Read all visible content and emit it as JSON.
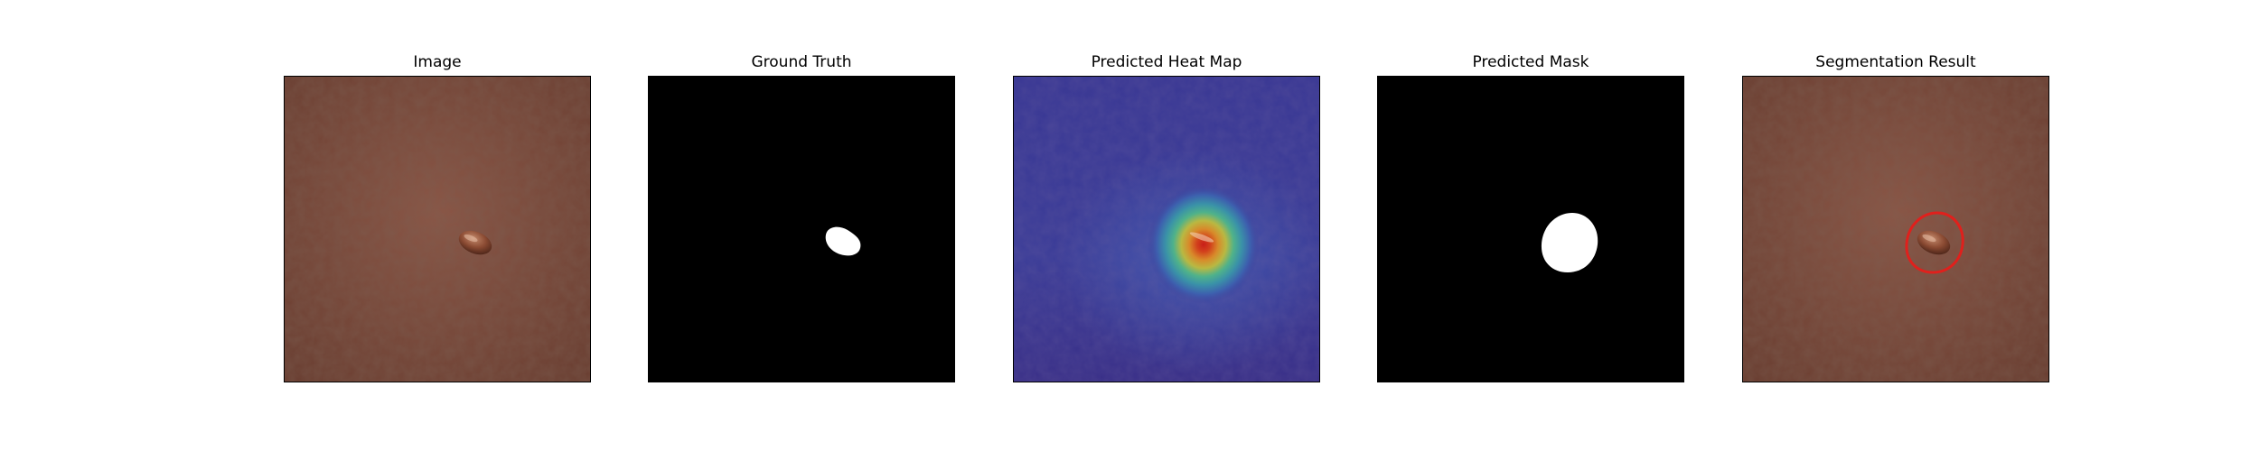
{
  "panels": [
    {
      "title": "Image"
    },
    {
      "title": "Ground Truth"
    },
    {
      "title": "Predicted Heat Map"
    },
    {
      "title": "Predicted Mask"
    },
    {
      "title": "Segmentation Result"
    }
  ],
  "colors": {
    "background": "#ffffff",
    "leather": "#7a4a3c",
    "mask_background": "#000000",
    "mask_foreground": "#ffffff",
    "heatmap_cold": "#3b2f8f",
    "heatmap_hot": "#c8201a",
    "contour": "#e0201c"
  }
}
